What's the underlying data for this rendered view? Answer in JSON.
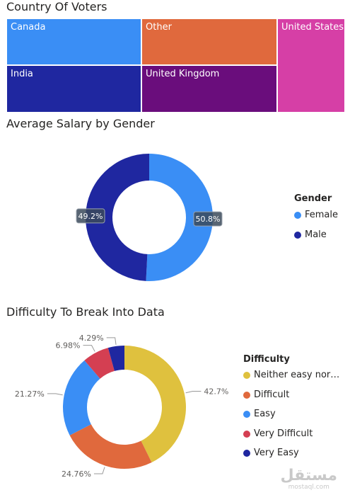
{
  "chart_data": [
    {
      "type": "treemap",
      "title": "Country Of Voters",
      "categories": [
        "Canada",
        "Other",
        "United States",
        "India",
        "United Kingdom"
      ],
      "colors": [
        "#3a8ef5",
        "#e0693d",
        "#d63fa6",
        "#1f27a0",
        "#6a0d7c"
      ]
    },
    {
      "type": "pie",
      "title": "Average Salary by Gender",
      "legend_title": "Gender",
      "categories": [
        "Female",
        "Male"
      ],
      "values": [
        50.8,
        49.2
      ],
      "labels": [
        "50.8%",
        "49.2%"
      ],
      "colors": [
        "#3a8ef5",
        "#1f27a0"
      ],
      "legend": "right"
    },
    {
      "type": "pie",
      "title": "Difficulty To Break Into Data",
      "legend_title": "Difficulty",
      "categories": [
        "Neither easy nor…",
        "Difficult",
        "Easy",
        "Very Difficult",
        "Very Easy"
      ],
      "values": [
        42.7,
        24.76,
        21.27,
        6.98,
        4.29
      ],
      "labels": [
        "42.7%",
        "24.76%",
        "21.27%",
        "6.98%",
        "4.29%"
      ],
      "colors": [
        "#dfc13e",
        "#e0693d",
        "#3a8ef5",
        "#d43f52",
        "#1f27a0"
      ],
      "legend": "right"
    }
  ],
  "watermark": {
    "arabic": "مستقل",
    "url": "mostaql.com"
  }
}
